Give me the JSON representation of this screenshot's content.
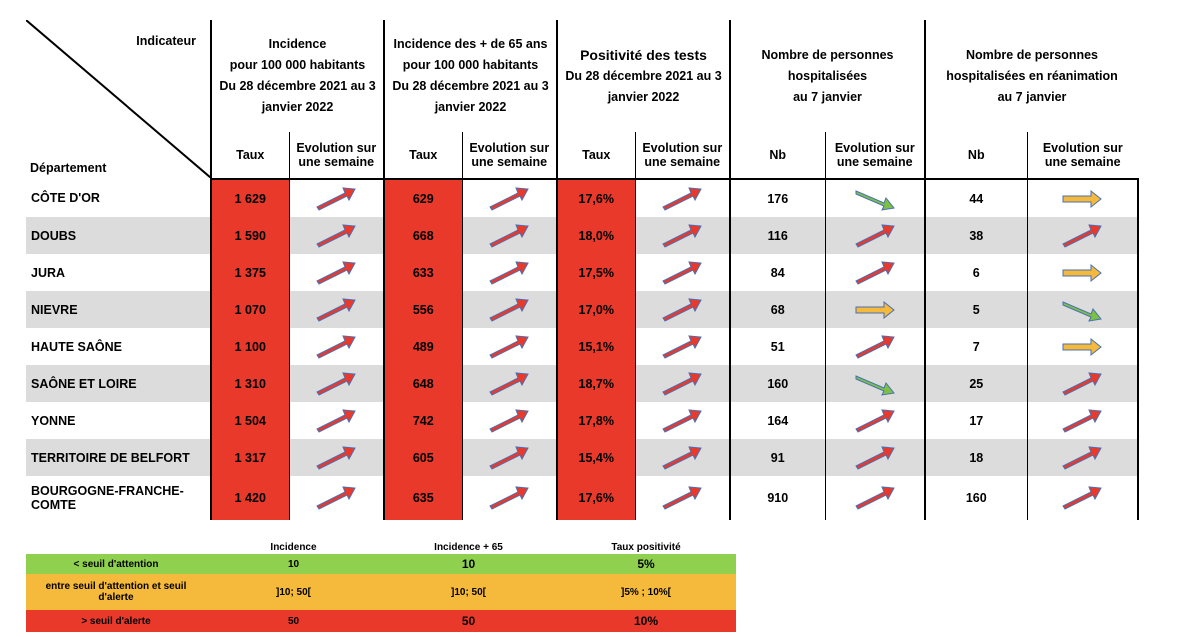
{
  "header": {
    "indicateur": "Indicateur",
    "departement": "Département",
    "col1_title": [
      "Incidence",
      "pour 100 000 habitants",
      "Du 28 décembre 2021 au 3",
      "janvier 2022"
    ],
    "col2_title": [
      "Incidence des + de 65 ans",
      "pour 100 000 habitants",
      "Du 28 décembre 2021 au 3",
      "janvier 2022"
    ],
    "col3_title": [
      "Positivité des tests",
      "Du 28 décembre 2021 au 3",
      "janvier 2022"
    ],
    "col4_title": [
      "Nombre de personnes",
      "hospitalisées",
      "au 7 janvier"
    ],
    "col5_title": [
      "Nombre de personnes",
      "hospitalisées en réanimation",
      "au 7 janvier"
    ],
    "taux": "Taux",
    "nb": "Nb",
    "evol": [
      "Evolution sur",
      "une semaine"
    ]
  },
  "colors": {
    "red_arrow": "#e8392b",
    "green_arrow": "#7cc242",
    "yellow_arrow": "#f5b93b",
    "red_cell": "#e8392b",
    "arrow_stroke": "#4a6fb5"
  },
  "rows": [
    {
      "dep": [
        "CÔTE D'OR"
      ],
      "inc": "1 629",
      "inc65": "629",
      "pos": "17,6%",
      "hosp": "176",
      "hosp_evol": "down-green",
      "rea": "44",
      "rea_evol": "flat-yellow"
    },
    {
      "dep": [
        "DOUBS"
      ],
      "inc": "1 590",
      "inc65": "668",
      "pos": "18,0%",
      "hosp": "116",
      "hosp_evol": "up-red",
      "rea": "38",
      "rea_evol": "up-red"
    },
    {
      "dep": [
        "JURA"
      ],
      "inc": "1 375",
      "inc65": "633",
      "pos": "17,5%",
      "hosp": "84",
      "hosp_evol": "up-red",
      "rea": "6",
      "rea_evol": "flat-yellow"
    },
    {
      "dep": [
        "NIEVRE"
      ],
      "inc": "1 070",
      "inc65": "556",
      "pos": "17,0%",
      "hosp": "68",
      "hosp_evol": "flat-yellow",
      "rea": "5",
      "rea_evol": "down-green"
    },
    {
      "dep": [
        "HAUTE SAÔNE"
      ],
      "inc": "1 100",
      "inc65": "489",
      "pos": "15,1%",
      "hosp": "51",
      "hosp_evol": "up-red",
      "rea": "7",
      "rea_evol": "flat-yellow"
    },
    {
      "dep": [
        "SAÔNE ET LOIRE"
      ],
      "inc": "1 310",
      "inc65": "648",
      "pos": "18,7%",
      "hosp": "160",
      "hosp_evol": "down-green",
      "rea": "25",
      "rea_evol": "up-red"
    },
    {
      "dep": [
        "YONNE"
      ],
      "inc": "1 504",
      "inc65": "742",
      "pos": "17,8%",
      "hosp": "164",
      "hosp_evol": "up-red",
      "rea": "17",
      "rea_evol": "up-red"
    },
    {
      "dep": [
        "TERRITOIRE DE BELFORT"
      ],
      "inc": "1 317",
      "inc65": "605",
      "pos": "15,4%",
      "hosp": "91",
      "hosp_evol": "up-red",
      "rea": "18",
      "rea_evol": "up-red"
    },
    {
      "dep": [
        "BOURGOGNE-FRANCHE-",
        "COMTE"
      ],
      "inc": "1 420",
      "inc65": "635",
      "pos": "17,6%",
      "hosp": "910",
      "hosp_evol": "up-red",
      "rea": "160",
      "rea_evol": "up-red"
    }
  ],
  "legend": {
    "headers": [
      "",
      "Incidence",
      "Incidence + 65",
      "Taux positivité"
    ],
    "rows": [
      {
        "label": [
          "< seuil d'attention"
        ],
        "values": [
          "10",
          "10",
          "5%"
        ],
        "color": "#8fd14f"
      },
      {
        "label": [
          "entre seuil d'attention et seuil",
          "d'alerte"
        ],
        "values": [
          "]10; 50[",
          "]10; 50[",
          "]5% ; 10%["
        ],
        "color": "#f5b93b"
      },
      {
        "label": [
          "> seuil d'alerte"
        ],
        "values": [
          "50",
          "50",
          "10%"
        ],
        "color": "#e8392b"
      }
    ]
  }
}
